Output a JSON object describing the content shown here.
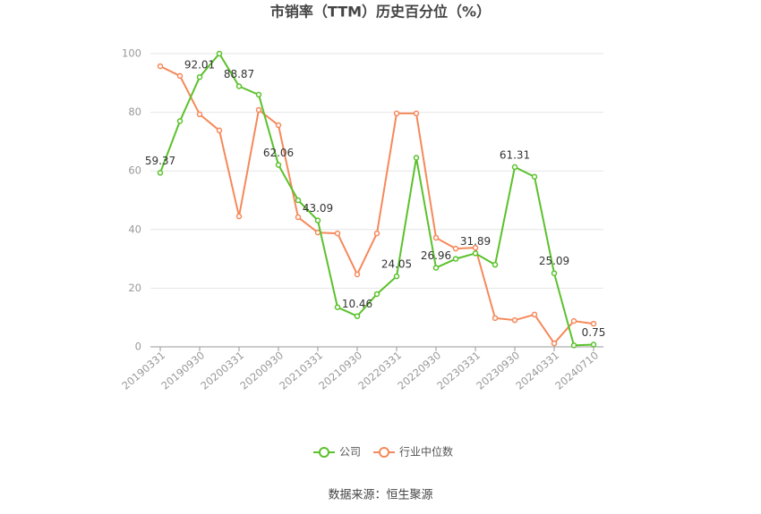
{
  "chart_data": {
    "type": "line",
    "title": "市销率（TTM）历史百分位（%）",
    "categories": [
      "20190331",
      null,
      "20190930",
      null,
      "20200331",
      null,
      "20200930",
      null,
      "20210331",
      null,
      "20210930",
      null,
      "20220331",
      null,
      "20220930",
      null,
      "20230331",
      null,
      "20230930",
      null,
      "20240331",
      null,
      "20240710"
    ],
    "series": [
      {
        "name": "公司",
        "color": "#5bc12c",
        "values": [
          59.37,
          77,
          92.01,
          100,
          88.87,
          86,
          62.06,
          50,
          43.09,
          13.5,
          10.46,
          18,
          24.05,
          64.5,
          26.96,
          30,
          31.89,
          28,
          61.31,
          58,
          25.09,
          0.5,
          0.75
        ],
        "value_labels": [
          "59.37",
          null,
          "92.01",
          null,
          "88.87",
          null,
          "62.06",
          null,
          "43.09",
          null,
          "10.46",
          null,
          "24.05",
          null,
          "26.96",
          null,
          "31.89",
          null,
          "61.31",
          null,
          "25.09",
          null,
          "0.75"
        ]
      },
      {
        "name": "行业中位数",
        "color": "#f5895b",
        "values": [
          95.7,
          92.4,
          79.3,
          73.8,
          44.5,
          80.8,
          75.6,
          44.2,
          39,
          38.7,
          24.7,
          38.7,
          79.6,
          79.6,
          37.2,
          33.5,
          33.8,
          9.8,
          9.1,
          11,
          1.2,
          8.8,
          7.9
        ]
      }
    ],
    "ylim": [
      0,
      100
    ],
    "yticks": [
      0,
      20,
      40,
      60,
      80,
      100
    ],
    "grid": true,
    "legend": "bottom",
    "source": "数据来源：恒生聚源"
  }
}
